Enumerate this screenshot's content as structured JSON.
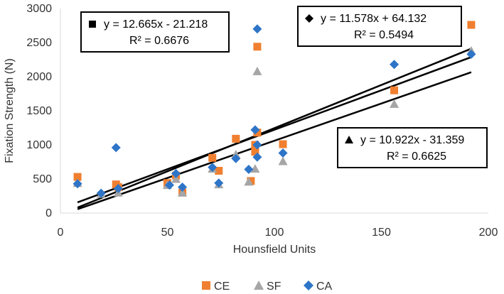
{
  "chart_data": {
    "type": "scatter",
    "title": "",
    "xlabel": "Hounsfield Units",
    "ylabel": "Fixation Strength (N)",
    "xlim": [
      0,
      200
    ],
    "ylim": [
      0,
      3000
    ],
    "xticks": [
      0,
      50,
      100,
      150,
      200
    ],
    "yticks": [
      0,
      500,
      1000,
      1500,
      2000,
      2500,
      3000
    ],
    "grid": false,
    "legend_position": "bottom",
    "series": [
      {
        "name": "CE",
        "marker": "square",
        "color": "#F07F2F",
        "points": [
          [
            8,
            530
          ],
          [
            26,
            420
          ],
          [
            27,
            380
          ],
          [
            50,
            440
          ],
          [
            54,
            550
          ],
          [
            57,
            300
          ],
          [
            71,
            810
          ],
          [
            74,
            620
          ],
          [
            82,
            1090
          ],
          [
            89,
            470
          ],
          [
            91,
            1000
          ],
          [
            91,
            900
          ],
          [
            92,
            1180
          ],
          [
            92,
            2440
          ],
          [
            104,
            1010
          ],
          [
            156,
            1800
          ],
          [
            192,
            2760
          ]
        ]
      },
      {
        "name": "SF",
        "marker": "triangle",
        "color": "#A6A6A6",
        "points": [
          [
            8,
            440
          ],
          [
            19,
            280
          ],
          [
            27,
            300
          ],
          [
            50,
            410
          ],
          [
            54,
            500
          ],
          [
            57,
            300
          ],
          [
            71,
            650
          ],
          [
            74,
            420
          ],
          [
            82,
            860
          ],
          [
            88,
            460
          ],
          [
            91,
            650
          ],
          [
            92,
            2080
          ],
          [
            104,
            760
          ],
          [
            156,
            1600
          ],
          [
            192,
            2380
          ]
        ]
      },
      {
        "name": "CA",
        "marker": "diamond",
        "color": "#2E75C8",
        "points": [
          [
            8,
            430
          ],
          [
            19,
            290
          ],
          [
            26,
            960
          ],
          [
            27,
            360
          ],
          [
            51,
            410
          ],
          [
            54,
            580
          ],
          [
            57,
            380
          ],
          [
            71,
            670
          ],
          [
            74,
            440
          ],
          [
            82,
            800
          ],
          [
            88,
            640
          ],
          [
            91,
            1220
          ],
          [
            92,
            820
          ],
          [
            92,
            2700
          ],
          [
            92,
            1000
          ],
          [
            104,
            880
          ],
          [
            156,
            2180
          ],
          [
            192,
            2330
          ]
        ]
      }
    ],
    "trendlines": [
      {
        "series": "CE",
        "slope": 12.665,
        "intercept": -21.218,
        "x_range": [
          8,
          192
        ],
        "equation": "y = 12.665x - 21.218",
        "r2": "R² = 0.6676"
      },
      {
        "series": "SF",
        "slope": 10.922,
        "intercept": -31.359,
        "x_range": [
          8,
          192
        ],
        "equation": "y = 10.922x - 31.359",
        "r2": "R² = 0.6625"
      },
      {
        "series": "CA",
        "slope": 11.578,
        "intercept": 64.132,
        "x_range": [
          8,
          192
        ],
        "equation": "y = 11.578x + 64.132",
        "r2": "R² = 0.5494"
      }
    ],
    "annotations": [
      {
        "id": "ce",
        "marker": "square",
        "equation": "y = 12.665x - 21.218",
        "r2": "R² = 0.6676",
        "placement": "top-left"
      },
      {
        "id": "ca",
        "marker": "diamond",
        "equation": "y = 11.578x + 64.132",
        "r2": "R² = 0.5494",
        "placement": "top-right"
      },
      {
        "id": "sf",
        "marker": "triangle",
        "equation": "y = 10.922x - 31.359",
        "r2": "R² = 0.6625",
        "placement": "bottom-right"
      }
    ]
  }
}
